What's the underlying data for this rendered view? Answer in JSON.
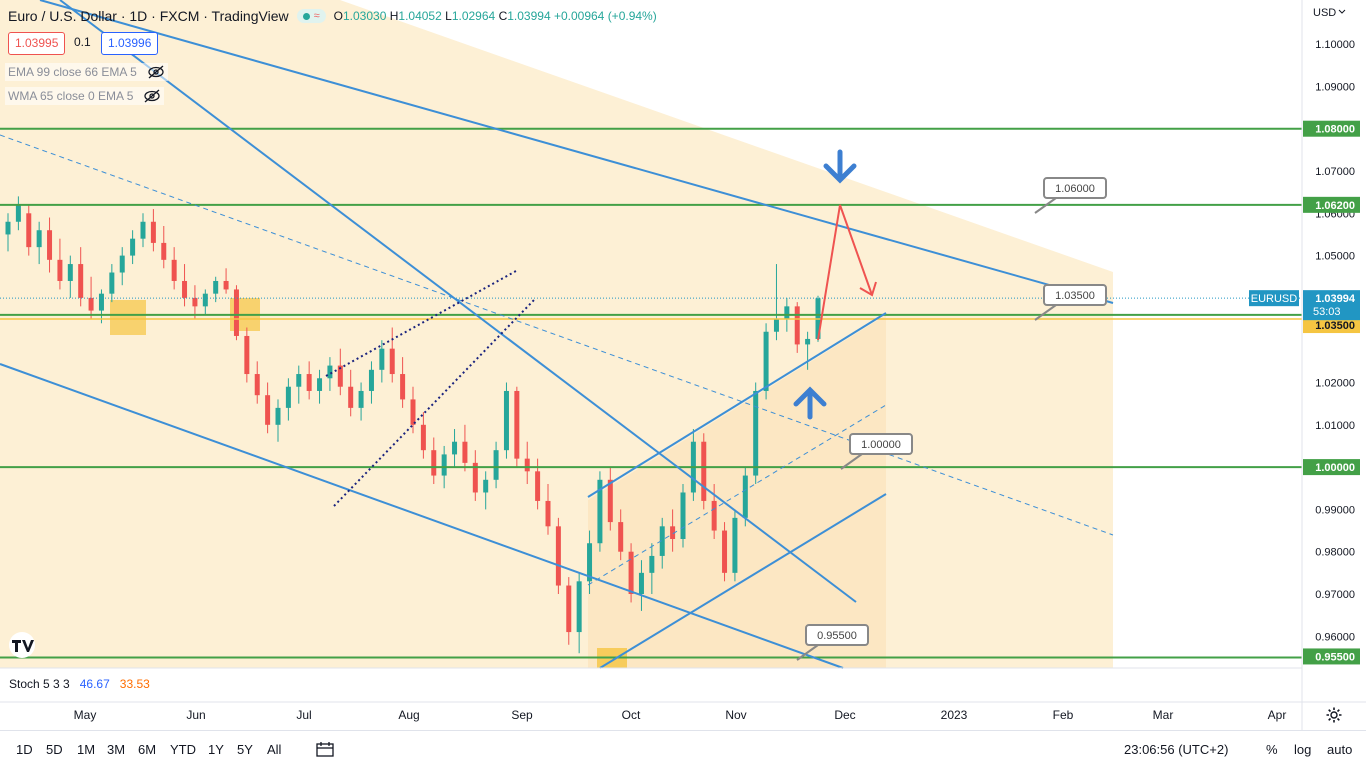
{
  "header": {
    "title": "Euro / U.S. Dollar · 1D · FXCM · TradingView",
    "status_glyph": "≈",
    "o_label": "O",
    "open": "1.03030",
    "h_label": "H",
    "high": "1.04052",
    "l_label": "L",
    "low": "1.02964",
    "c_label": "C",
    "close": "1.03994",
    "change": "+0.00964 (+0.94%)"
  },
  "trade": {
    "sell": "1.03995",
    "spread": "0.1",
    "buy": "1.03996"
  },
  "indicators": [
    {
      "label": "EMA 99 close 66 EMA 5"
    },
    {
      "label": "WMA 65 close 0 EMA 5"
    }
  ],
  "stoch": {
    "label": "Stoch 5 3 3",
    "k": "46.67",
    "d": "33.53"
  },
  "bottom": {
    "ranges": [
      "1D",
      "5D",
      "1M",
      "3M",
      "6M",
      "YTD",
      "1Y",
      "5Y",
      "All"
    ],
    "clock": "23:06:56 (UTC+2)",
    "percent": "%",
    "log": "log",
    "auto": "auto"
  },
  "colors": {
    "bull": "#26a69a",
    "bear": "#ef5350",
    "zone": "#fdf0d5",
    "zone_dark": "#fbe3bb",
    "level": "#43a047",
    "channel": "#3d8fd6",
    "axis_badge_blue": "#2196c3",
    "yellow": "#f5c542",
    "arrow_blue": "#3d7fd1",
    "arrow_red": "#ef5350"
  },
  "chart_data": {
    "type": "candlestick",
    "symbol": "EURUSD",
    "currency": "USD",
    "current_price": {
      "value": 1.03994,
      "countdown": "53:03"
    },
    "x_ticks": [
      "May",
      "Jun",
      "Jul",
      "Aug",
      "Sep",
      "Oct",
      "Nov",
      "Dec",
      "2023",
      "Feb",
      "Mar",
      "Apr"
    ],
    "y_ticks": [
      1.1,
      1.09,
      1.07,
      1.06,
      1.05,
      1.02,
      1.01,
      0.99,
      0.98,
      0.97,
      0.96
    ],
    "ylim": [
      0.9536,
      1.1103
    ],
    "horizontal_levels": [
      1.08,
      1.062,
      1.036,
      1.035,
      1.0,
      0.955
    ],
    "price_callouts": [
      "1.06000",
      "1.03500",
      "1.00000",
      "0.95500"
    ],
    "ohlc_daily_approx": [
      [
        1.055,
        1.06,
        1.051,
        1.058
      ],
      [
        1.058,
        1.064,
        1.056,
        1.062
      ],
      [
        1.06,
        1.062,
        1.05,
        1.052
      ],
      [
        1.052,
        1.058,
        1.048,
        1.056
      ],
      [
        1.056,
        1.059,
        1.046,
        1.049
      ],
      [
        1.049,
        1.054,
        1.042,
        1.044
      ],
      [
        1.044,
        1.05,
        1.04,
        1.048
      ],
      [
        1.048,
        1.052,
        1.038,
        1.04
      ],
      [
        1.04,
        1.045,
        1.035,
        1.037
      ],
      [
        1.037,
        1.042,
        1.034,
        1.041
      ],
      [
        1.041,
        1.048,
        1.039,
        1.046
      ],
      [
        1.046,
        1.052,
        1.043,
        1.05
      ],
      [
        1.05,
        1.056,
        1.048,
        1.054
      ],
      [
        1.054,
        1.06,
        1.052,
        1.058
      ],
      [
        1.058,
        1.061,
        1.051,
        1.053
      ],
      [
        1.053,
        1.057,
        1.047,
        1.049
      ],
      [
        1.049,
        1.052,
        1.042,
        1.044
      ],
      [
        1.044,
        1.048,
        1.038,
        1.04
      ],
      [
        1.04,
        1.043,
        1.035,
        1.038
      ],
      [
        1.038,
        1.042,
        1.036,
        1.041
      ],
      [
        1.041,
        1.045,
        1.039,
        1.044
      ],
      [
        1.044,
        1.047,
        1.041,
        1.042
      ],
      [
        1.042,
        1.043,
        1.03,
        1.031
      ],
      [
        1.031,
        1.033,
        1.02,
        1.022
      ],
      [
        1.022,
        1.025,
        1.015,
        1.017
      ],
      [
        1.017,
        1.02,
        1.008,
        1.01
      ],
      [
        1.01,
        1.016,
        1.006,
        1.014
      ],
      [
        1.014,
        1.021,
        1.011,
        1.019
      ],
      [
        1.019,
        1.024,
        1.015,
        1.022
      ],
      [
        1.022,
        1.025,
        1.016,
        1.018
      ],
      [
        1.018,
        1.023,
        1.015,
        1.021
      ],
      [
        1.021,
        1.026,
        1.018,
        1.024
      ],
      [
        1.024,
        1.028,
        1.017,
        1.019
      ],
      [
        1.019,
        1.023,
        1.012,
        1.014
      ],
      [
        1.014,
        1.02,
        1.011,
        1.018
      ],
      [
        1.018,
        1.025,
        1.015,
        1.023
      ],
      [
        1.023,
        1.03,
        1.02,
        1.028
      ],
      [
        1.028,
        1.033,
        1.02,
        1.022
      ],
      [
        1.022,
        1.026,
        1.014,
        1.016
      ],
      [
        1.016,
        1.019,
        1.008,
        1.01
      ],
      [
        1.01,
        1.013,
        1.002,
        1.004
      ],
      [
        1.004,
        1.007,
        0.996,
        0.998
      ],
      [
        0.998,
        1.005,
        0.995,
        1.003
      ],
      [
        1.003,
        1.009,
        1.0,
        1.006
      ],
      [
        1.006,
        1.01,
        0.999,
        1.001
      ],
      [
        1.001,
        1.004,
        0.992,
        0.994
      ],
      [
        0.994,
        0.999,
        0.99,
        0.997
      ],
      [
        0.997,
        1.006,
        0.995,
        1.004
      ],
      [
        1.004,
        1.02,
        1.002,
        1.018
      ],
      [
        1.018,
        1.019,
        1.0,
        1.002
      ],
      [
        1.002,
        1.006,
        0.996,
        0.999
      ],
      [
        0.999,
        1.002,
        0.99,
        0.992
      ],
      [
        0.992,
        0.996,
        0.984,
        0.986
      ],
      [
        0.986,
        0.988,
        0.97,
        0.972
      ],
      [
        0.972,
        0.974,
        0.958,
        0.961
      ],
      [
        0.961,
        0.975,
        0.956,
        0.973
      ],
      [
        0.973,
        0.985,
        0.97,
        0.982
      ],
      [
        0.982,
        0.999,
        0.98,
        0.997
      ],
      [
        0.997,
        1.0,
        0.985,
        0.987
      ],
      [
        0.987,
        0.99,
        0.978,
        0.98
      ],
      [
        0.98,
        0.982,
        0.968,
        0.97
      ],
      [
        0.97,
        0.978,
        0.966,
        0.975
      ],
      [
        0.975,
        0.982,
        0.97,
        0.979
      ],
      [
        0.979,
        0.988,
        0.976,
        0.986
      ],
      [
        0.986,
        0.99,
        0.98,
        0.983
      ],
      [
        0.983,
        0.996,
        0.981,
        0.994
      ],
      [
        0.994,
        1.009,
        0.992,
        1.006
      ],
      [
        1.006,
        1.008,
        0.99,
        0.992
      ],
      [
        0.992,
        0.996,
        0.983,
        0.985
      ],
      [
        0.985,
        0.987,
        0.973,
        0.975
      ],
      [
        0.975,
        0.99,
        0.973,
        0.988
      ],
      [
        0.988,
        1.0,
        0.986,
        0.998
      ],
      [
        0.998,
        1.02,
        0.996,
        1.018
      ],
      [
        1.018,
        1.034,
        1.016,
        1.032
      ],
      [
        1.032,
        1.048,
        1.03,
        1.035
      ],
      [
        1.035,
        1.04,
        1.032,
        1.038
      ],
      [
        1.038,
        1.039,
        1.027,
        1.029
      ],
      [
        1.029,
        1.032,
        1.023,
        1.0303
      ],
      [
        1.0303,
        1.0405,
        1.0296,
        1.0399
      ]
    ]
  }
}
